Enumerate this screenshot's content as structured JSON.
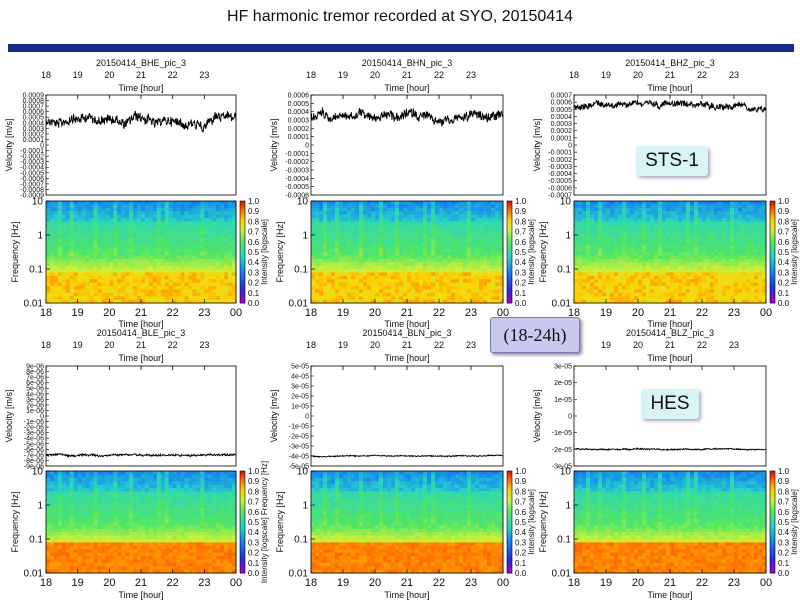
{
  "title": "HF harmonic tremor recorded at SYO, 20150414",
  "colors": {
    "header_bar": "#1a2a8c",
    "badge_bg": "#d8f4f8",
    "range_bg": "#c8c8f0"
  },
  "badges": {
    "sts": "STS-1",
    "hes": "HES",
    "range": "(18-24h)"
  },
  "chart_data": [
    {
      "type": "line",
      "panel": "waveform",
      "title": "20150414_BHE_pic_3",
      "xlabel": "Time [hour]",
      "ylabel": "Velocity [m/s]",
      "xlim": [
        18,
        24
      ],
      "x_ticks": [
        "18",
        "19",
        "20",
        "21",
        "22",
        "23"
      ],
      "y_ticks": [
        "0.0009",
        "0.0008",
        "0.0007",
        "0.0006",
        "0.0005",
        "0.0004",
        "0.0003",
        "0.0002",
        "0.0001",
        "0",
        "-0.0001",
        "-0.0002",
        "-0.0003",
        "-0.0004",
        "-0.0005",
        "-0.0006",
        "-0.0007",
        "-0.0008",
        "-0.0009"
      ],
      "ylim": [
        -0.0009,
        0.0009
      ],
      "trace_level": 0.00045,
      "trace_spread": 0.0001
    },
    {
      "type": "line",
      "panel": "waveform",
      "title": "20150414_BHN_pic_3",
      "xlabel": "Time [hour]",
      "ylabel": "Velocity [m/s]",
      "xlim": [
        18,
        24
      ],
      "x_ticks": [
        "18",
        "19",
        "20",
        "21",
        "22",
        "23"
      ],
      "y_ticks": [
        "0.0006",
        "0.0005",
        "0.0004",
        "0.0003",
        "0.0002",
        "0.0001",
        "0",
        "-0.0001",
        "-0.0002",
        "-0.0003",
        "-0.0004",
        "-0.0005",
        "-0.0006"
      ],
      "ylim": [
        -0.0006,
        0.0006
      ],
      "trace_level": 0.00035,
      "trace_spread": 6e-05
    },
    {
      "type": "line",
      "panel": "waveform",
      "title": "20150414_BHZ_pic_3",
      "xlabel": "Time [hour]",
      "ylabel": "Velocity [m/s]",
      "xlim": [
        18,
        24
      ],
      "x_ticks": [
        "18",
        "19",
        "20",
        "21",
        "22",
        "23"
      ],
      "y_ticks": [
        "0.0007",
        "0.0006",
        "0.0005",
        "0.0004",
        "0.0003",
        "0.0002",
        "0.0001",
        "0",
        "-0.0001",
        "-0.0002",
        "-0.0003",
        "-0.0004",
        "-0.0005",
        "-0.0006",
        "-0.0007"
      ],
      "ylim": [
        -0.0007,
        0.0007
      ],
      "trace_level": 0.00056,
      "trace_spread": 5e-05
    },
    {
      "type": "heatmap",
      "panel": "spectrogram",
      "component": "BHE",
      "xlabel": "Time [hour]",
      "ylabel": "Frequency [Hz]",
      "xlim": [
        18,
        24
      ],
      "x_ticks": [
        "18",
        "19",
        "20",
        "21",
        "22",
        "23",
        "00"
      ],
      "y_ticks": [
        "10",
        "1",
        "0.1",
        "0.01"
      ],
      "ylim": [
        0.01,
        10
      ],
      "y_scale": "log",
      "colorbar_label": "Intensity [logscale]",
      "colorbar_ticks": [
        "1.0",
        "0.9",
        "0.8",
        "0.7",
        "0.6",
        "0.5",
        "0.4",
        "0.3",
        "0.2",
        "0.1",
        "0.0"
      ]
    },
    {
      "type": "heatmap",
      "panel": "spectrogram",
      "component": "BHN",
      "xlabel": "Time [hour]",
      "ylabel": "Frequency [Hz]",
      "xlim": [
        18,
        24
      ],
      "x_ticks": [
        "18",
        "19",
        "20",
        "21",
        "22",
        "23",
        "00"
      ],
      "y_ticks": [
        "10",
        "1",
        "0.1",
        "0.01"
      ],
      "ylim": [
        0.01,
        10
      ],
      "y_scale": "log",
      "colorbar_label": "Intensity [logscale]",
      "colorbar_ticks": [
        "1.0",
        "0.9",
        "0.8",
        "0.7",
        "0.6",
        "0.5",
        "0.4",
        "0.3",
        "0.2",
        "0.1",
        "0.0"
      ]
    },
    {
      "type": "heatmap",
      "panel": "spectrogram",
      "component": "BHZ",
      "xlabel": "Time [hour]",
      "ylabel": "Frequency [Hz]",
      "xlim": [
        18,
        24
      ],
      "x_ticks": [
        "18",
        "19",
        "20",
        "21",
        "22",
        "23",
        "00"
      ],
      "y_ticks": [
        "10",
        "1",
        "0.1",
        "0.01"
      ],
      "ylim": [
        0.01,
        10
      ],
      "y_scale": "log",
      "colorbar_label": "Intensity [logscale]",
      "colorbar_ticks": [
        "1.0",
        "0.9",
        "0.8",
        "0.7",
        "0.6",
        "0.5",
        "0.4",
        "0.3",
        "0.2",
        "0.1",
        "0.0"
      ]
    },
    {
      "type": "line",
      "panel": "waveform",
      "title": "20150414_BLE_pic_3",
      "xlabel": "Time [hour]",
      "ylabel": "Velocity [m/s]",
      "xlim": [
        18,
        24
      ],
      "x_ticks": [
        "18",
        "19",
        "20",
        "21",
        "22",
        "23"
      ],
      "y_ticks": [
        "9e-06",
        "8e-06",
        "7e-06",
        "6e-06",
        "5e-06",
        "4e-06",
        "3e-06",
        "2e-06",
        "1e-06",
        "0",
        "-1e-06",
        "-2e-06",
        "-3e-06",
        "-4e-06",
        "-5e-06",
        "-6e-06",
        "-7e-06",
        "-8e-06",
        "-9e-06"
      ],
      "ylim": [
        -9e-06,
        9e-06
      ],
      "trace_level": -7e-06,
      "trace_spread": 2e-07
    },
    {
      "type": "line",
      "panel": "waveform",
      "title": "20150414_BLN_pic_3",
      "xlabel": "Time [hour]",
      "ylabel": "Velocity [m/s]",
      "xlim": [
        18,
        24
      ],
      "x_ticks": [
        "18",
        "19",
        "20",
        "21",
        "22",
        "23"
      ],
      "y_ticks": [
        "5e-05",
        "4e-05",
        "3e-05",
        "2e-05",
        "1e-05",
        "0",
        "-1e-05",
        "-2e-05",
        "-3e-05",
        "-4e-05",
        "-5e-05"
      ],
      "ylim": [
        -5e-05,
        5e-05
      ],
      "trace_level": -4e-05,
      "trace_spread": 6e-07
    },
    {
      "type": "line",
      "panel": "waveform",
      "title": "20150414_BLZ_pic_3",
      "xlabel": "Time [hour]",
      "ylabel": "Velocity [m/s]",
      "xlim": [
        18,
        24
      ],
      "x_ticks": [
        "18",
        "19",
        "20",
        "21",
        "22",
        "23"
      ],
      "y_ticks": [
        "3e-05",
        "2e-05",
        "1e-05",
        "0",
        "-1e-05",
        "-2e-05",
        "-3e-05"
      ],
      "ylim": [
        -3e-05,
        3e-05
      ],
      "trace_level": -2e-05,
      "trace_spread": 4e-07
    },
    {
      "type": "heatmap",
      "panel": "spectrogram",
      "component": "BLE",
      "xlabel": "Time [hour]",
      "ylabel": "Frequency [Hz]",
      "xlim": [
        18,
        24
      ],
      "x_ticks": [
        "18",
        "19",
        "20",
        "21",
        "22",
        "23",
        "00"
      ],
      "y_ticks": [
        "10",
        "1",
        "0.1",
        "0.01"
      ],
      "ylim": [
        0.01,
        10
      ],
      "y_scale": "log",
      "colorbar_label": "Intensity [logscale] Frequency [Hz]",
      "colorbar_ticks": [
        "1.0",
        "0.9",
        "0.8",
        "0.7",
        "0.6",
        "0.5",
        "0.4",
        "0.3",
        "0.2",
        "0.1",
        "0.0"
      ]
    },
    {
      "type": "heatmap",
      "panel": "spectrogram",
      "component": "BLN",
      "xlabel": "Time [hour]",
      "ylabel": "Frequency [Hz]",
      "xlim": [
        18,
        24
      ],
      "x_ticks": [
        "18",
        "19",
        "20",
        "21",
        "22",
        "23",
        "00"
      ],
      "y_ticks": [
        "10",
        "1",
        "0.1",
        "0.01"
      ],
      "ylim": [
        0.01,
        10
      ],
      "y_scale": "log",
      "colorbar_label": "Intensity [logscale]",
      "colorbar_ticks": [
        "1.0",
        "0.9",
        "0.8",
        "0.7",
        "0.6",
        "0.5",
        "0.4",
        "0.3",
        "0.2",
        "0.1",
        "0.0"
      ]
    },
    {
      "type": "heatmap",
      "panel": "spectrogram",
      "component": "BLZ",
      "xlabel": "Time [hour]",
      "ylabel": "Frequency [Hz]",
      "xlim": [
        18,
        24
      ],
      "x_ticks": [
        "18",
        "19",
        "20",
        "21",
        "22",
        "23",
        "00"
      ],
      "y_ticks": [
        "10",
        "1",
        "0.1",
        "0.01"
      ],
      "ylim": [
        0.01,
        10
      ],
      "y_scale": "log",
      "colorbar_label": "Intensity [logscale]",
      "colorbar_ticks": [
        "1.0",
        "0.9",
        "0.8",
        "0.7",
        "0.6",
        "0.5",
        "0.4",
        "0.3",
        "0.2",
        "0.1",
        "0.0"
      ]
    }
  ]
}
